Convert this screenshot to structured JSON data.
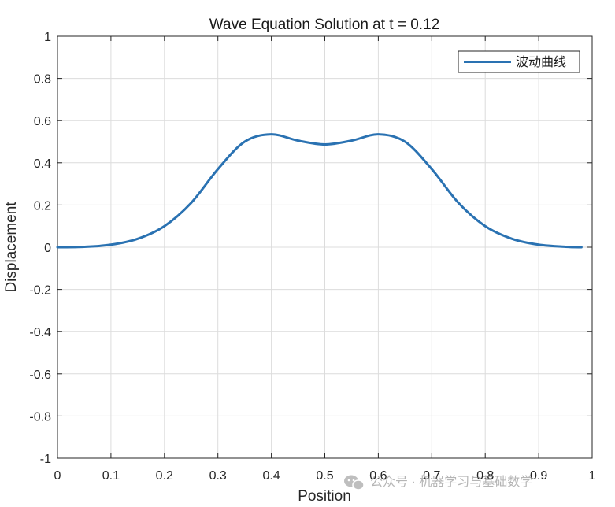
{
  "chart_data": {
    "type": "line",
    "title": "Wave Equation Solution at t = 0.12",
    "xlabel": "Position",
    "ylabel": "Displacement",
    "xlim": [
      0,
      1
    ],
    "ylim": [
      -1,
      1
    ],
    "xticks": [
      0,
      0.1,
      0.2,
      0.3,
      0.4,
      0.5,
      0.6,
      0.7,
      0.8,
      0.9,
      1
    ],
    "xtick_labels": [
      "0",
      "0.1",
      "0.2",
      "0.3",
      "0.4",
      "0.5",
      "0.6",
      "0.7",
      "0.8",
      "0.9",
      "1"
    ],
    "yticks": [
      -1,
      -0.8,
      -0.6,
      -0.4,
      -0.2,
      0,
      0.2,
      0.4,
      0.6,
      0.8,
      1
    ],
    "ytick_labels": [
      "-1",
      "-0.8",
      "-0.6",
      "-0.4",
      "-0.2",
      "0",
      "0.2",
      "0.4",
      "0.6",
      "0.8",
      "1"
    ],
    "grid": true,
    "legend_position": "top-right",
    "series": [
      {
        "name": "波动曲线",
        "color": "#2a72b2",
        "x": [
          0,
          0.05,
          0.1,
          0.15,
          0.2,
          0.25,
          0.3,
          0.35,
          0.4,
          0.45,
          0.5,
          0.55,
          0.6,
          0.65,
          0.7,
          0.75,
          0.8,
          0.85,
          0.9,
          0.95,
          0.98
        ],
        "y": [
          0,
          0.002,
          0.012,
          0.04,
          0.1,
          0.21,
          0.37,
          0.5,
          0.535,
          0.505,
          0.487,
          0.505,
          0.535,
          0.5,
          0.37,
          0.21,
          0.1,
          0.04,
          0.012,
          0.002,
          0
        ]
      }
    ]
  },
  "watermark": {
    "text": "公众号 · 机器学习与基础数学"
  }
}
